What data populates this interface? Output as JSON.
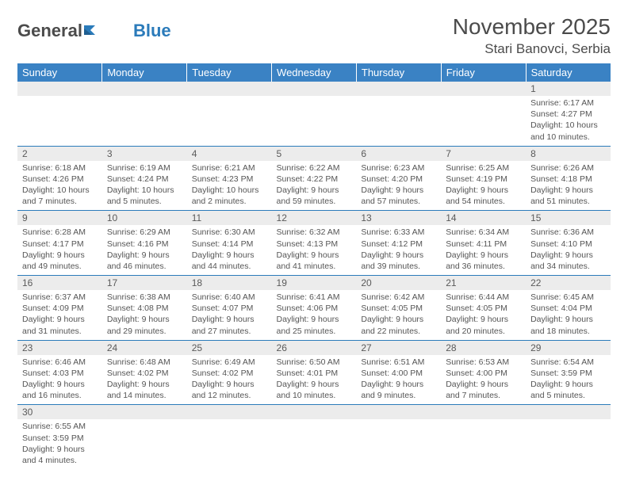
{
  "logo": {
    "general": "General",
    "blue": "Blue"
  },
  "header": {
    "month": "November 2025",
    "location": "Stari Banovci, Serbia"
  },
  "style": {
    "header_bg": "#3a82c4",
    "header_text": "#ffffff",
    "daynum_bg": "#ececec",
    "border_color": "#2b7bba",
    "text_color": "#555555",
    "page_bg": "#ffffff"
  },
  "columns": [
    "Sunday",
    "Monday",
    "Tuesday",
    "Wednesday",
    "Thursday",
    "Friday",
    "Saturday"
  ],
  "weeks": [
    {
      "nums": [
        "",
        "",
        "",
        "",
        "",
        "",
        "1"
      ],
      "cells": [
        null,
        null,
        null,
        null,
        null,
        null,
        {
          "sunrise": "Sunrise: 6:17 AM",
          "sunset": "Sunset: 4:27 PM",
          "day": "Daylight: 10 hours and 10 minutes."
        }
      ]
    },
    {
      "nums": [
        "2",
        "3",
        "4",
        "5",
        "6",
        "7",
        "8"
      ],
      "cells": [
        {
          "sunrise": "Sunrise: 6:18 AM",
          "sunset": "Sunset: 4:26 PM",
          "day": "Daylight: 10 hours and 7 minutes."
        },
        {
          "sunrise": "Sunrise: 6:19 AM",
          "sunset": "Sunset: 4:24 PM",
          "day": "Daylight: 10 hours and 5 minutes."
        },
        {
          "sunrise": "Sunrise: 6:21 AM",
          "sunset": "Sunset: 4:23 PM",
          "day": "Daylight: 10 hours and 2 minutes."
        },
        {
          "sunrise": "Sunrise: 6:22 AM",
          "sunset": "Sunset: 4:22 PM",
          "day": "Daylight: 9 hours and 59 minutes."
        },
        {
          "sunrise": "Sunrise: 6:23 AM",
          "sunset": "Sunset: 4:20 PM",
          "day": "Daylight: 9 hours and 57 minutes."
        },
        {
          "sunrise": "Sunrise: 6:25 AM",
          "sunset": "Sunset: 4:19 PM",
          "day": "Daylight: 9 hours and 54 minutes."
        },
        {
          "sunrise": "Sunrise: 6:26 AM",
          "sunset": "Sunset: 4:18 PM",
          "day": "Daylight: 9 hours and 51 minutes."
        }
      ]
    },
    {
      "nums": [
        "9",
        "10",
        "11",
        "12",
        "13",
        "14",
        "15"
      ],
      "cells": [
        {
          "sunrise": "Sunrise: 6:28 AM",
          "sunset": "Sunset: 4:17 PM",
          "day": "Daylight: 9 hours and 49 minutes."
        },
        {
          "sunrise": "Sunrise: 6:29 AM",
          "sunset": "Sunset: 4:16 PM",
          "day": "Daylight: 9 hours and 46 minutes."
        },
        {
          "sunrise": "Sunrise: 6:30 AM",
          "sunset": "Sunset: 4:14 PM",
          "day": "Daylight: 9 hours and 44 minutes."
        },
        {
          "sunrise": "Sunrise: 6:32 AM",
          "sunset": "Sunset: 4:13 PM",
          "day": "Daylight: 9 hours and 41 minutes."
        },
        {
          "sunrise": "Sunrise: 6:33 AM",
          "sunset": "Sunset: 4:12 PM",
          "day": "Daylight: 9 hours and 39 minutes."
        },
        {
          "sunrise": "Sunrise: 6:34 AM",
          "sunset": "Sunset: 4:11 PM",
          "day": "Daylight: 9 hours and 36 minutes."
        },
        {
          "sunrise": "Sunrise: 6:36 AM",
          "sunset": "Sunset: 4:10 PM",
          "day": "Daylight: 9 hours and 34 minutes."
        }
      ]
    },
    {
      "nums": [
        "16",
        "17",
        "18",
        "19",
        "20",
        "21",
        "22"
      ],
      "cells": [
        {
          "sunrise": "Sunrise: 6:37 AM",
          "sunset": "Sunset: 4:09 PM",
          "day": "Daylight: 9 hours and 31 minutes."
        },
        {
          "sunrise": "Sunrise: 6:38 AM",
          "sunset": "Sunset: 4:08 PM",
          "day": "Daylight: 9 hours and 29 minutes."
        },
        {
          "sunrise": "Sunrise: 6:40 AM",
          "sunset": "Sunset: 4:07 PM",
          "day": "Daylight: 9 hours and 27 minutes."
        },
        {
          "sunrise": "Sunrise: 6:41 AM",
          "sunset": "Sunset: 4:06 PM",
          "day": "Daylight: 9 hours and 25 minutes."
        },
        {
          "sunrise": "Sunrise: 6:42 AM",
          "sunset": "Sunset: 4:05 PM",
          "day": "Daylight: 9 hours and 22 minutes."
        },
        {
          "sunrise": "Sunrise: 6:44 AM",
          "sunset": "Sunset: 4:05 PM",
          "day": "Daylight: 9 hours and 20 minutes."
        },
        {
          "sunrise": "Sunrise: 6:45 AM",
          "sunset": "Sunset: 4:04 PM",
          "day": "Daylight: 9 hours and 18 minutes."
        }
      ]
    },
    {
      "nums": [
        "23",
        "24",
        "25",
        "26",
        "27",
        "28",
        "29"
      ],
      "cells": [
        {
          "sunrise": "Sunrise: 6:46 AM",
          "sunset": "Sunset: 4:03 PM",
          "day": "Daylight: 9 hours and 16 minutes."
        },
        {
          "sunrise": "Sunrise: 6:48 AM",
          "sunset": "Sunset: 4:02 PM",
          "day": "Daylight: 9 hours and 14 minutes."
        },
        {
          "sunrise": "Sunrise: 6:49 AM",
          "sunset": "Sunset: 4:02 PM",
          "day": "Daylight: 9 hours and 12 minutes."
        },
        {
          "sunrise": "Sunrise: 6:50 AM",
          "sunset": "Sunset: 4:01 PM",
          "day": "Daylight: 9 hours and 10 minutes."
        },
        {
          "sunrise": "Sunrise: 6:51 AM",
          "sunset": "Sunset: 4:00 PM",
          "day": "Daylight: 9 hours and 9 minutes."
        },
        {
          "sunrise": "Sunrise: 6:53 AM",
          "sunset": "Sunset: 4:00 PM",
          "day": "Daylight: 9 hours and 7 minutes."
        },
        {
          "sunrise": "Sunrise: 6:54 AM",
          "sunset": "Sunset: 3:59 PM",
          "day": "Daylight: 9 hours and 5 minutes."
        }
      ]
    },
    {
      "nums": [
        "30",
        "",
        "",
        "",
        "",
        "",
        ""
      ],
      "cells": [
        {
          "sunrise": "Sunrise: 6:55 AM",
          "sunset": "Sunset: 3:59 PM",
          "day": "Daylight: 9 hours and 4 minutes."
        },
        null,
        null,
        null,
        null,
        null,
        null
      ]
    }
  ]
}
